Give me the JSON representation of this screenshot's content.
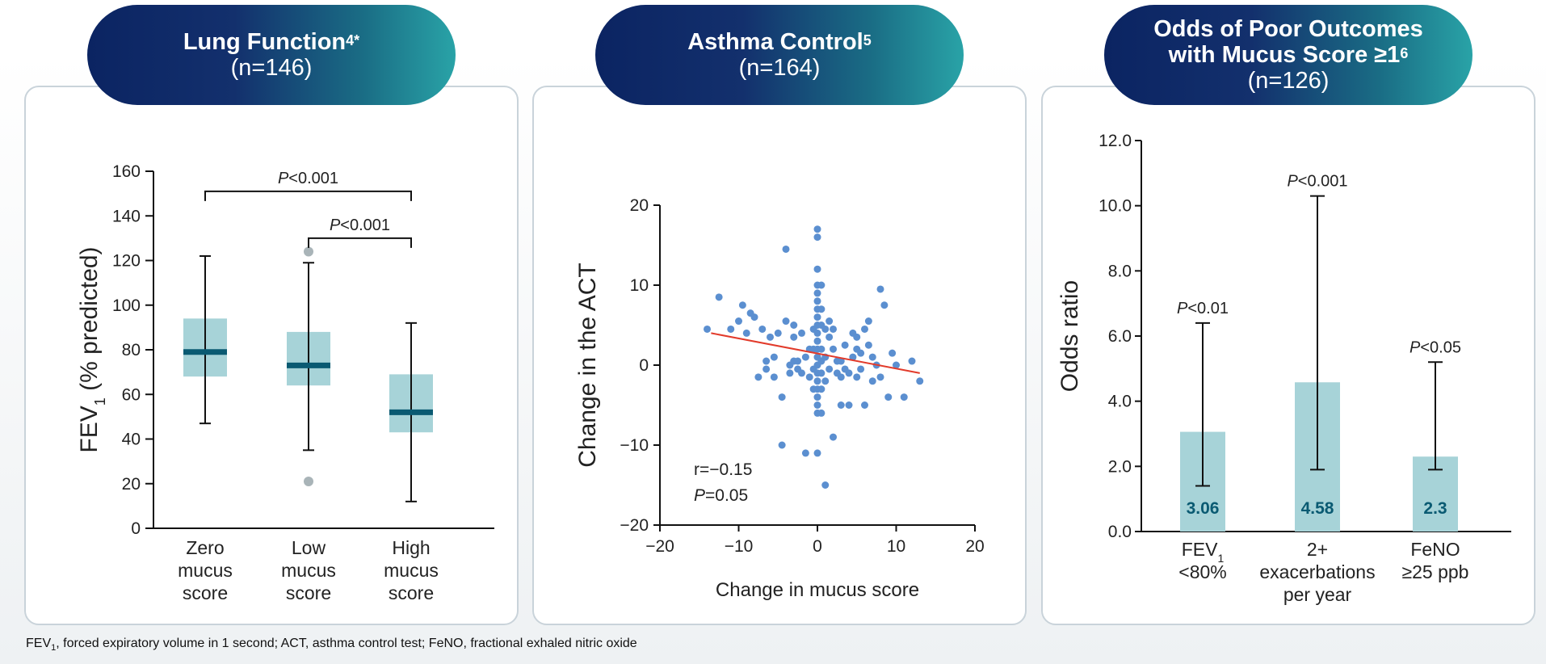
{
  "panels": {
    "lung": {
      "title": "Lung Function",
      "title_sup": "4*",
      "n": "(n=146)",
      "chart_data": {
        "type": "box",
        "ylabel_main": "FEV",
        "ylabel_sub": "1",
        "ylabel_rest": " (% predicted)",
        "yticks": [
          "0",
          "20",
          "40",
          "60",
          "80",
          "100",
          "120",
          "140",
          "160"
        ],
        "ylim": [
          0,
          160
        ],
        "categories": [
          {
            "lines": [
              "Zero",
              "mucus",
              "score"
            ],
            "q1": 68,
            "median": 79,
            "q3": 94,
            "whisker_low": 47,
            "whisker_high": 122,
            "outliers": []
          },
          {
            "lines": [
              "Low",
              "mucus",
              "score"
            ],
            "q1": 64,
            "median": 73,
            "q3": 88,
            "whisker_low": 35,
            "whisker_high": 119,
            "outliers": [
              124,
              21
            ]
          },
          {
            "lines": [
              "High",
              "mucus",
              "score"
            ],
            "q1": 43,
            "median": 52,
            "q3": 69,
            "whisker_low": 12,
            "whisker_high": 92,
            "outliers": []
          }
        ],
        "brackets": [
          {
            "from": 0,
            "to": 2,
            "y": 151,
            "p_italic": "P",
            "p_rest": "<0.001"
          },
          {
            "from": 1,
            "to": 2,
            "y": 130,
            "p_italic": "P",
            "p_rest": "<0.001"
          }
        ]
      }
    },
    "asthma": {
      "title": "Asthma Control",
      "title_sup": "5",
      "n": "(n=164)",
      "chart_data": {
        "type": "scatter",
        "xlabel": "Change in mucus score",
        "ylabel": "Change in the ACT",
        "xlim": [
          -20,
          20
        ],
        "ylim": [
          -20,
          20
        ],
        "xticks": [
          "−20",
          "−10",
          "0",
          "10",
          "20"
        ],
        "yticks": [
          "20",
          "10",
          "0",
          "−10",
          "−20"
        ],
        "annotation_r": "r=−0.15",
        "annotation_p_italic": "P",
        "annotation_p_rest": "=0.05",
        "trend": {
          "x1": -13.5,
          "y1": 4,
          "x2": 13,
          "y2": -1
        },
        "points": [
          [
            -14,
            4.5
          ],
          [
            -12.5,
            8.5
          ],
          [
            -11,
            4.5
          ],
          [
            -10,
            5.5
          ],
          [
            -9.5,
            7.5
          ],
          [
            -9,
            4
          ],
          [
            -8.5,
            6.5
          ],
          [
            -7.5,
            -1.5
          ],
          [
            -7,
            4.5
          ],
          [
            -6.5,
            0.5
          ],
          [
            -6,
            3.5
          ],
          [
            -5.5,
            1
          ],
          [
            -5.5,
            -1.5
          ],
          [
            -5,
            4
          ],
          [
            -4.5,
            -4
          ],
          [
            -4.5,
            -10
          ],
          [
            -4,
            5.5
          ],
          [
            -4,
            14.5
          ],
          [
            -3.5,
            0
          ],
          [
            -3.5,
            -1
          ],
          [
            -3,
            3.5
          ],
          [
            -3,
            5
          ],
          [
            -3,
            0.5
          ],
          [
            -2.5,
            0.5
          ],
          [
            -2,
            4
          ],
          [
            -1.5,
            -11
          ],
          [
            -1,
            2
          ],
          [
            -1,
            -1.5
          ],
          [
            -0.5,
            4.5
          ],
          [
            -0.5,
            2
          ],
          [
            -0.5,
            -0.5
          ],
          [
            -0.5,
            -3
          ],
          [
            0,
            17
          ],
          [
            0,
            16
          ],
          [
            0,
            12
          ],
          [
            0,
            10
          ],
          [
            0,
            9
          ],
          [
            0,
            8
          ],
          [
            0,
            7
          ],
          [
            0,
            6
          ],
          [
            0,
            5
          ],
          [
            0,
            4
          ],
          [
            0,
            3
          ],
          [
            0,
            2
          ],
          [
            0,
            1
          ],
          [
            0,
            0
          ],
          [
            0,
            -1
          ],
          [
            0,
            -2
          ],
          [
            0,
            -3
          ],
          [
            0,
            -4
          ],
          [
            0,
            -5
          ],
          [
            0,
            -6
          ],
          [
            0,
            -11
          ],
          [
            0.5,
            10
          ],
          [
            0.5,
            7
          ],
          [
            0.5,
            5
          ],
          [
            0.5,
            2
          ],
          [
            0.5,
            0.5
          ],
          [
            0.5,
            -1
          ],
          [
            0.5,
            -3
          ],
          [
            0.5,
            -6
          ],
          [
            1,
            -15
          ],
          [
            1,
            4.5
          ],
          [
            1,
            1
          ],
          [
            1,
            -2
          ],
          [
            1.5,
            3.5
          ],
          [
            1.5,
            -0.5
          ],
          [
            2,
            4.5
          ],
          [
            2,
            2
          ],
          [
            2,
            -9
          ],
          [
            2.5,
            0.5
          ],
          [
            3,
            0.5
          ],
          [
            3,
            -1.5
          ],
          [
            3.5,
            2.5
          ],
          [
            4,
            -1
          ],
          [
            4,
            -5
          ],
          [
            4.5,
            1
          ],
          [
            5,
            2
          ],
          [
            5,
            3.5
          ],
          [
            5.5,
            1.5
          ],
          [
            6,
            -5
          ],
          [
            6,
            4.5
          ],
          [
            6.5,
            2.5
          ],
          [
            7,
            -2
          ],
          [
            7,
            1
          ],
          [
            8,
            9.5
          ],
          [
            8,
            -1.5
          ],
          [
            8.5,
            7.5
          ],
          [
            9,
            -4
          ],
          [
            10,
            0
          ],
          [
            11,
            -4
          ],
          [
            12,
            0.5
          ],
          [
            13,
            -2
          ],
          [
            -2.5,
            -0.5
          ],
          [
            -1.5,
            1
          ],
          [
            1.5,
            5.5
          ],
          [
            3,
            -5
          ],
          [
            5,
            -1.5
          ],
          [
            6.5,
            5.5
          ],
          [
            4.5,
            4
          ],
          [
            7.5,
            0
          ],
          [
            -6.5,
            -0.5
          ],
          [
            -2,
            -1
          ],
          [
            2.5,
            -1
          ],
          [
            3.5,
            -0.5
          ],
          [
            5.5,
            -0.5
          ],
          [
            -8,
            6
          ],
          [
            9.5,
            1.5
          ]
        ]
      }
    },
    "odds": {
      "title_line1": "Odds of Poor Outcomes",
      "title_line2": "with Mucus Score ≥1",
      "title_sup": "6",
      "n": "(n=126)",
      "chart_data": {
        "type": "bar",
        "ylabel": "Odds ratio",
        "ylim": [
          0,
          12
        ],
        "yticks": [
          "0.0",
          "2.0",
          "4.0",
          "6.0",
          "8.0",
          "10.0",
          "12.0"
        ],
        "bars": [
          {
            "lines": [
              "FEV",
              "<80%"
            ],
            "sub": "1",
            "value": 3.06,
            "label": "3.06",
            "ci_low": 1.4,
            "ci_high": 6.4,
            "p_italic": "P",
            "p_rest": "<0.01"
          },
          {
            "lines": [
              "2+",
              "exacerbations",
              "per year"
            ],
            "sub": "",
            "value": 4.58,
            "label": "4.58",
            "ci_low": 1.9,
            "ci_high": 10.3,
            "p_italic": "P",
            "p_rest": "<0.001"
          },
          {
            "lines": [
              "FeNO",
              "≥25 ppb"
            ],
            "sub": "",
            "value": 2.3,
            "label": "2.3",
            "ci_low": 1.9,
            "ci_high": 5.2,
            "p_italic": "P",
            "p_rest": "<0.05"
          }
        ]
      }
    }
  },
  "footnote": {
    "fev": "FEV",
    "fev_sub": "1",
    "rest": ", forced expiratory volume in 1 second; ACT, asthma control test; FeNO, fractional exhaled nitric oxide"
  },
  "colors": {
    "box_fill": "#a7d3d8",
    "median": "#0a5a72",
    "outlier": "#a9b4b8",
    "point": "#5b8fd0",
    "trend": "#e23b2b",
    "bar_fill": "#a7d3d8",
    "bar_label": "#0a5a72"
  }
}
